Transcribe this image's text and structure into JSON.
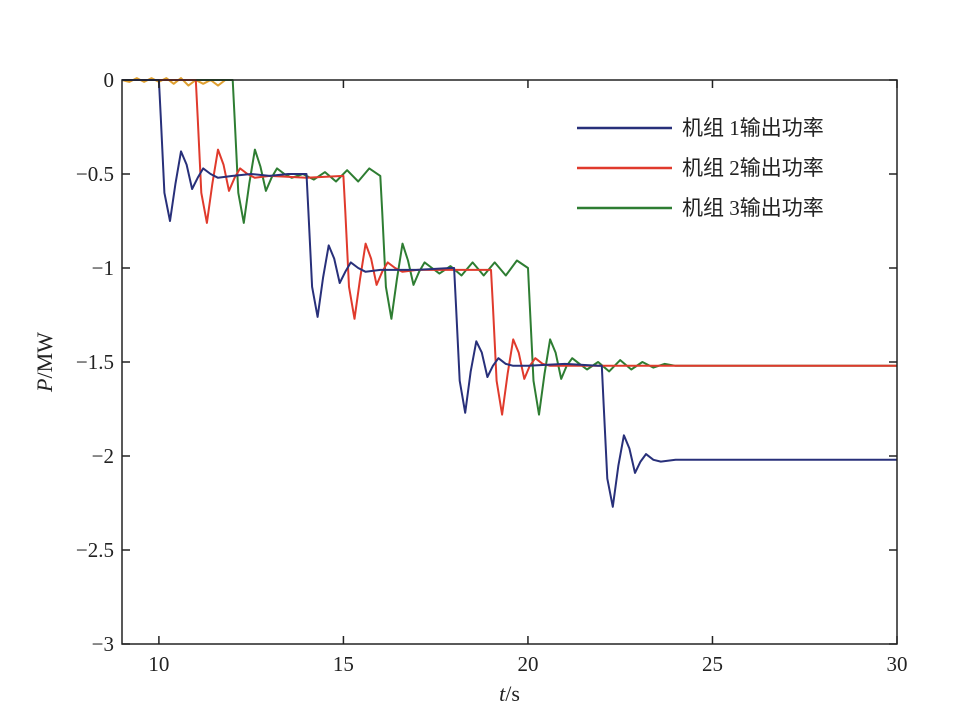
{
  "chart_data": {
    "type": "line",
    "title": "",
    "xlabel_italic": "t",
    "xlabel_unit": "/s",
    "ylabel_italic": "P",
    "ylabel_unit": "/MW",
    "xlim": [
      9,
      30
    ],
    "ylim": [
      -3,
      0
    ],
    "x_ticks": [
      10,
      15,
      20,
      25,
      30
    ],
    "x_tick_labels": [
      "10",
      "15",
      "20",
      "25",
      "30"
    ],
    "y_ticks": [
      0,
      -0.5,
      -1,
      -1.5,
      -2,
      -2.5,
      -3
    ],
    "y_tick_labels": [
      "0",
      "−0.5",
      "−1",
      "−1.5",
      "−2",
      "−2.5",
      "−3"
    ],
    "grid": false,
    "legend_position": "top-right",
    "series": [
      {
        "name": "机组 1输出功率",
        "color": "#28307a",
        "x": [
          9.0,
          9.9,
          10.0,
          10.05,
          10.15,
          10.3,
          10.45,
          10.6,
          10.75,
          10.9,
          11.05,
          11.2,
          11.4,
          11.6,
          12.0,
          12.5,
          13.0,
          13.5,
          13.9,
          14.0,
          14.05,
          14.15,
          14.3,
          14.45,
          14.6,
          14.75,
          14.9,
          15.05,
          15.2,
          15.4,
          15.6,
          16.0,
          17.0,
          17.9,
          18.0,
          18.05,
          18.15,
          18.3,
          18.45,
          18.6,
          18.75,
          18.9,
          19.05,
          19.2,
          19.4,
          19.6,
          20.0,
          21.0,
          21.9,
          22.0,
          22.05,
          22.15,
          22.3,
          22.45,
          22.6,
          22.75,
          22.9,
          23.05,
          23.2,
          23.4,
          23.6,
          24.0,
          30.0
        ],
        "y": [
          0.0,
          0.0,
          0.0,
          -0.2,
          -0.6,
          -0.75,
          -0.55,
          -0.38,
          -0.45,
          -0.58,
          -0.52,
          -0.47,
          -0.5,
          -0.52,
          -0.51,
          -0.5,
          -0.51,
          -0.5,
          -0.5,
          -0.5,
          -0.7,
          -1.1,
          -1.26,
          -1.05,
          -0.88,
          -0.95,
          -1.08,
          -1.02,
          -0.97,
          -1.0,
          -1.02,
          -1.01,
          -1.01,
          -1.0,
          -1.0,
          -1.2,
          -1.6,
          -1.77,
          -1.55,
          -1.39,
          -1.45,
          -1.58,
          -1.52,
          -1.48,
          -1.51,
          -1.52,
          -1.52,
          -1.51,
          -1.52,
          -1.52,
          -1.72,
          -2.12,
          -2.27,
          -2.05,
          -1.89,
          -1.96,
          -2.09,
          -2.03,
          -1.99,
          -2.02,
          -2.03,
          -2.02,
          -2.02
        ]
      },
      {
        "name": "机组 2输出功率",
        "color": "#e03a2c",
        "x": [
          9.0,
          10.0,
          10.5,
          11.0,
          11.05,
          11.15,
          11.3,
          11.45,
          11.6,
          11.75,
          11.9,
          12.05,
          12.2,
          12.4,
          12.6,
          13.0,
          14.0,
          15.0,
          15.05,
          15.15,
          15.3,
          15.45,
          15.6,
          15.75,
          15.9,
          16.05,
          16.2,
          16.4,
          16.6,
          17.0,
          18.0,
          19.0,
          19.05,
          19.15,
          19.3,
          19.45,
          19.6,
          19.75,
          19.9,
          20.05,
          20.2,
          20.4,
          20.6,
          21.0,
          22.0,
          24.0,
          30.0
        ],
        "y": [
          0.0,
          0.0,
          0.0,
          0.0,
          -0.2,
          -0.6,
          -0.76,
          -0.55,
          -0.37,
          -0.45,
          -0.59,
          -0.52,
          -0.47,
          -0.5,
          -0.52,
          -0.51,
          -0.52,
          -0.51,
          -0.7,
          -1.1,
          -1.27,
          -1.06,
          -0.87,
          -0.95,
          -1.09,
          -1.02,
          -0.97,
          -1.0,
          -1.02,
          -1.01,
          -1.01,
          -1.01,
          -1.2,
          -1.6,
          -1.78,
          -1.56,
          -1.38,
          -1.45,
          -1.59,
          -1.52,
          -1.48,
          -1.51,
          -1.52,
          -1.52,
          -1.52,
          -1.52,
          -1.52
        ]
      },
      {
        "name": "机组 3输出功率",
        "color": "#2e7d32",
        "x": [
          9.0,
          10.0,
          11.0,
          12.0,
          12.05,
          12.15,
          12.3,
          12.45,
          12.6,
          12.75,
          12.9,
          13.05,
          13.2,
          13.4,
          13.6,
          13.9,
          14.2,
          14.5,
          14.8,
          15.1,
          15.4,
          15.7,
          16.0,
          16.05,
          16.15,
          16.3,
          16.45,
          16.6,
          16.75,
          16.9,
          17.05,
          17.2,
          17.4,
          17.6,
          17.9,
          18.2,
          18.5,
          18.8,
          19.1,
          19.4,
          19.7,
          20.0,
          20.05,
          20.15,
          20.3,
          20.45,
          20.6,
          20.75,
          20.9,
          21.05,
          21.2,
          21.4,
          21.6,
          21.9,
          22.2,
          22.5,
          22.8,
          23.1,
          23.4,
          23.7,
          24.0,
          30.0
        ],
        "y": [
          0.0,
          0.0,
          0.0,
          0.0,
          -0.2,
          -0.6,
          -0.76,
          -0.55,
          -0.37,
          -0.46,
          -0.59,
          -0.52,
          -0.47,
          -0.5,
          -0.52,
          -0.5,
          -0.53,
          -0.49,
          -0.54,
          -0.48,
          -0.54,
          -0.47,
          -0.51,
          -0.7,
          -1.1,
          -1.27,
          -1.06,
          -0.87,
          -0.96,
          -1.09,
          -1.02,
          -0.97,
          -1.0,
          -1.03,
          -0.99,
          -1.04,
          -0.97,
          -1.04,
          -0.97,
          -1.04,
          -0.96,
          -1.0,
          -1.2,
          -1.6,
          -1.78,
          -1.56,
          -1.38,
          -1.45,
          -1.59,
          -1.52,
          -1.48,
          -1.51,
          -1.54,
          -1.5,
          -1.55,
          -1.49,
          -1.54,
          -1.5,
          -1.53,
          -1.51,
          -1.52,
          -1.52
        ]
      },
      {
        "name": "",
        "color": "#e0a030",
        "x": [
          9.0,
          9.2,
          9.4,
          9.6,
          9.8,
          10.0,
          10.2,
          10.4,
          10.6,
          10.8,
          11.0,
          11.2,
          11.4,
          11.6,
          11.8,
          12.0
        ],
        "y": [
          0.0,
          -0.01,
          0.01,
          -0.01,
          0.01,
          -0.01,
          0.01,
          -0.02,
          0.01,
          -0.03,
          0.0,
          -0.02,
          0.0,
          -0.03,
          0.0,
          0.0
        ]
      }
    ],
    "legend_entries": [
      {
        "label": "机组 1输出功率",
        "color": "#28307a"
      },
      {
        "label": "机组 2输出功率",
        "color": "#e03a2c"
      },
      {
        "label": "机组 3输出功率",
        "color": "#2e7d32"
      }
    ]
  }
}
